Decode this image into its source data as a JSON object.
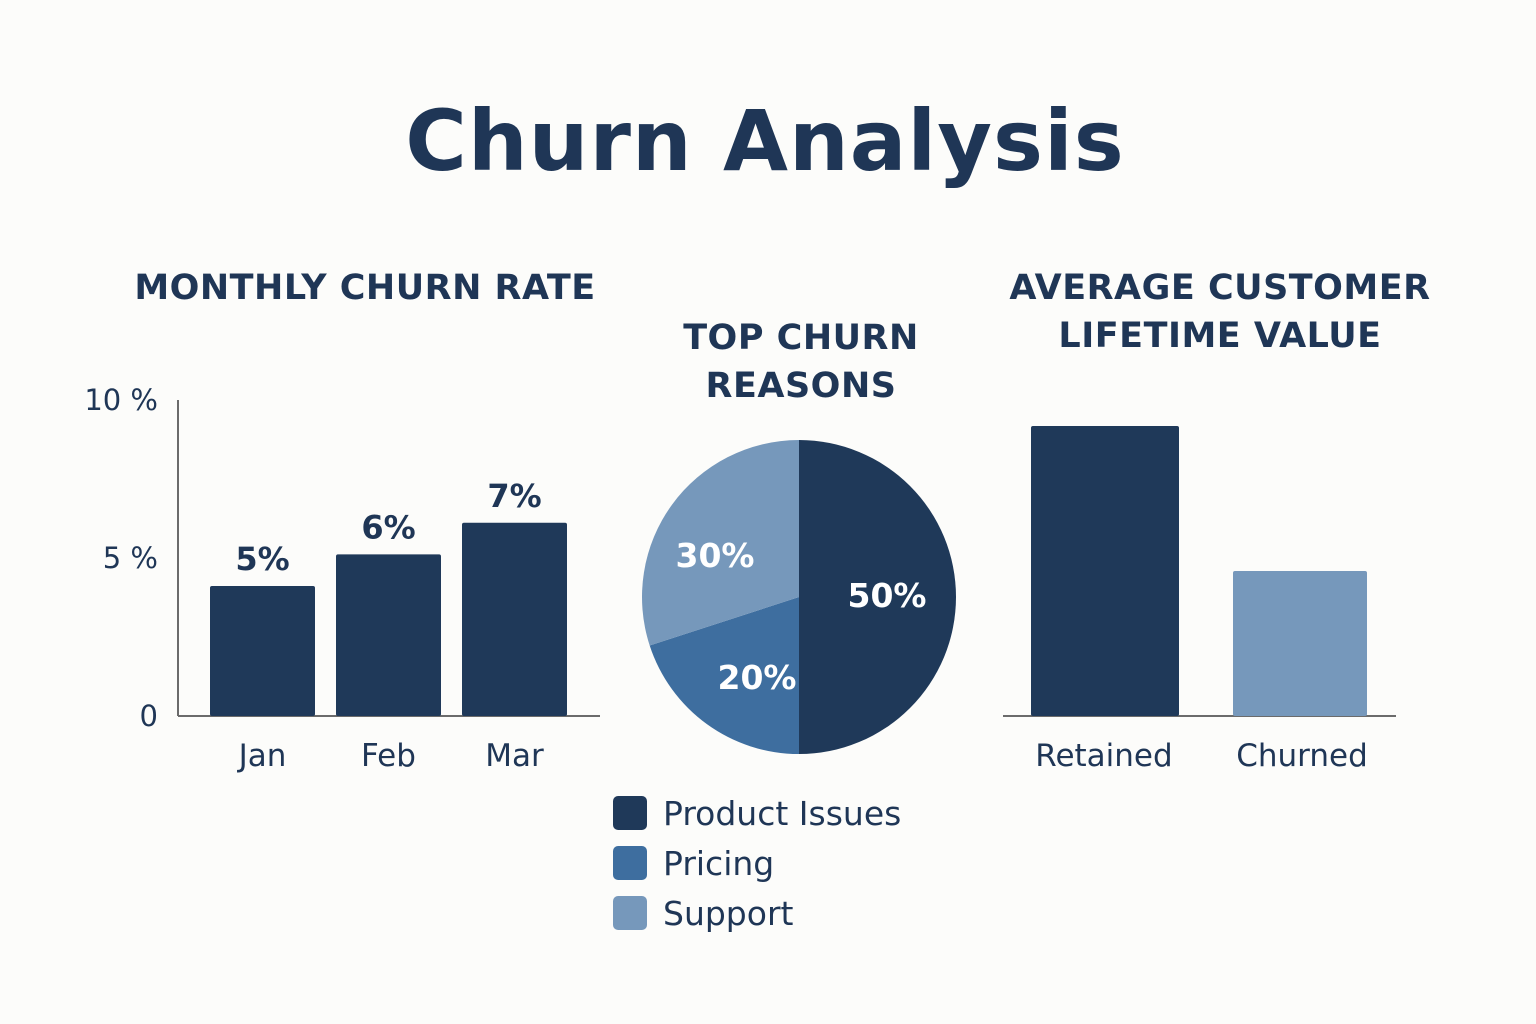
{
  "title": "Churn Analysis",
  "colors": {
    "dark": "#1f3959",
    "medium": "#3e6e9f",
    "light": "#7698bb",
    "text": "#1f3656",
    "axis": "#6b6b6b"
  },
  "chart_data": [
    {
      "type": "bar",
      "title": "MONTHLY CHURN RATE",
      "categories": [
        "Jan",
        "Feb",
        "Mar"
      ],
      "values": [
        5,
        6,
        7
      ],
      "data_labels": [
        "5%",
        "6%",
        "7%"
      ],
      "y_ticks": [
        "0",
        "5 %",
        "10 %"
      ],
      "ylim": [
        0,
        10
      ],
      "grid": false,
      "color": "#1f3959"
    },
    {
      "type": "pie",
      "title": "TOP CHURN REASONS",
      "slices": [
        {
          "name": "Product Issues",
          "value": 50,
          "label": "50%",
          "color": "#1f3959"
        },
        {
          "name": "Pricing",
          "value": 20,
          "label": "20%",
          "color": "#3e6e9f"
        },
        {
          "name": "Support",
          "value": 30,
          "label": "30%",
          "color": "#7698bb"
        }
      ],
      "legend_placement": "bottom"
    },
    {
      "type": "bar",
      "title": "AVERAGE CUSTOMER LIFETIME VALUE",
      "categories": [
        "Retained",
        "Churned"
      ],
      "values": [
        1.0,
        0.5
      ],
      "colors": [
        "#1f3959",
        "#7698bb"
      ],
      "grid": false
    }
  ]
}
